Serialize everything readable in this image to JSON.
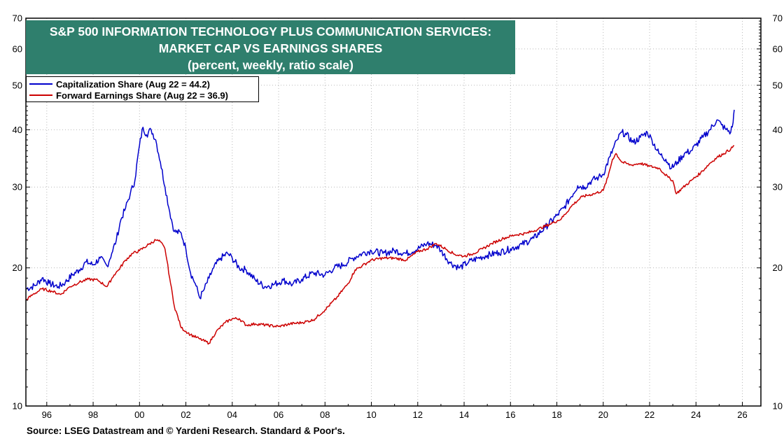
{
  "chart_data": {
    "type": "line",
    "title_lines": [
      "S&P 500 INFORMATION TECHNOLOGY PLUS COMMUNICATION SERVICES:",
      "MARKET CAP VS EARNINGS SHARES",
      "(percent, weekly, ratio scale)"
    ],
    "y_scale": "log",
    "ylim": [
      10,
      70
    ],
    "xlim": [
      1995.1,
      2026.8
    ],
    "y_ticks": [
      10,
      20,
      30,
      40,
      50,
      60,
      70
    ],
    "x_ticks": [
      {
        "value": 1996,
        "label": "96"
      },
      {
        "value": 1998,
        "label": "98"
      },
      {
        "value": 2000,
        "label": "00"
      },
      {
        "value": 2002,
        "label": "02"
      },
      {
        "value": 2004,
        "label": "04"
      },
      {
        "value": 2006,
        "label": "06"
      },
      {
        "value": 2008,
        "label": "08"
      },
      {
        "value": 2010,
        "label": "10"
      },
      {
        "value": 2012,
        "label": "12"
      },
      {
        "value": 2014,
        "label": "14"
      },
      {
        "value": 2016,
        "label": "16"
      },
      {
        "value": 2018,
        "label": "18"
      },
      {
        "value": 2020,
        "label": "20"
      },
      {
        "value": 2022,
        "label": "22"
      },
      {
        "value": 2024,
        "label": "24"
      },
      {
        "value": 2026,
        "label": "26"
      }
    ],
    "grid": true,
    "legend_position": "top-left",
    "series": [
      {
        "name": "Capitalization Share  (Aug 22 = 44.2)",
        "color": "#0000cc",
        "points": [
          [
            1995.1,
            18.0
          ],
          [
            1995.5,
            18.3
          ],
          [
            1995.8,
            19.0
          ],
          [
            1996.1,
            18.5
          ],
          [
            1996.5,
            18.2
          ],
          [
            1996.8,
            18.6
          ],
          [
            1997.1,
            19.3
          ],
          [
            1997.4,
            19.8
          ],
          [
            1997.7,
            20.6
          ],
          [
            1998.0,
            20.3
          ],
          [
            1998.3,
            21.0
          ],
          [
            1998.6,
            20.2
          ],
          [
            1998.8,
            21.5
          ],
          [
            1999.0,
            23.0
          ],
          [
            1999.2,
            25.5
          ],
          [
            1999.4,
            27.0
          ],
          [
            1999.6,
            29.0
          ],
          [
            1999.8,
            31.0
          ],
          [
            2000.0,
            37.0
          ],
          [
            2000.15,
            40.5
          ],
          [
            2000.3,
            39.0
          ],
          [
            2000.5,
            40.0
          ],
          [
            2000.7,
            38.0
          ],
          [
            2000.9,
            34.0
          ],
          [
            2001.1,
            30.0
          ],
          [
            2001.3,
            26.5
          ],
          [
            2001.5,
            24.0
          ],
          [
            2001.8,
            23.8
          ],
          [
            2002.0,
            22.0
          ],
          [
            2002.2,
            19.5
          ],
          [
            2002.4,
            18.5
          ],
          [
            2002.6,
            17.2
          ],
          [
            2002.8,
            18.0
          ],
          [
            2003.0,
            19.0
          ],
          [
            2003.2,
            20.0
          ],
          [
            2003.5,
            21.0
          ],
          [
            2003.8,
            21.5
          ],
          [
            2004.0,
            21.0
          ],
          [
            2004.3,
            20.0
          ],
          [
            2004.6,
            19.8
          ],
          [
            2005.0,
            18.8
          ],
          [
            2005.4,
            18.2
          ],
          [
            2005.8,
            18.4
          ],
          [
            2006.2,
            18.8
          ],
          [
            2006.6,
            18.4
          ],
          [
            2007.0,
            18.9
          ],
          [
            2007.5,
            19.5
          ],
          [
            2008.0,
            19.3
          ],
          [
            2008.4,
            20.0
          ],
          [
            2008.8,
            20.3
          ],
          [
            2009.2,
            21.0
          ],
          [
            2009.6,
            21.5
          ],
          [
            2010.0,
            21.8
          ],
          [
            2010.5,
            21.5
          ],
          [
            2011.0,
            21.8
          ],
          [
            2011.5,
            21.5
          ],
          [
            2012.0,
            22.0
          ],
          [
            2012.4,
            22.6
          ],
          [
            2012.8,
            22.4
          ],
          [
            2013.0,
            21.8
          ],
          [
            2013.4,
            20.5
          ],
          [
            2013.8,
            20.0
          ],
          [
            2014.2,
            20.6
          ],
          [
            2014.6,
            21.0
          ],
          [
            2015.0,
            21.3
          ],
          [
            2015.5,
            21.6
          ],
          [
            2016.0,
            22.0
          ],
          [
            2016.5,
            22.5
          ],
          [
            2017.0,
            23.2
          ],
          [
            2017.5,
            24.5
          ],
          [
            2018.0,
            26.0
          ],
          [
            2018.3,
            27.0
          ],
          [
            2018.6,
            28.5
          ],
          [
            2018.9,
            30.2
          ],
          [
            2019.2,
            30.0
          ],
          [
            2019.5,
            31.0
          ],
          [
            2019.8,
            31.5
          ],
          [
            2020.0,
            32.0
          ],
          [
            2020.3,
            35.0
          ],
          [
            2020.6,
            38.0
          ],
          [
            2020.8,
            39.5
          ],
          [
            2021.0,
            39.0
          ],
          [
            2021.3,
            37.5
          ],
          [
            2021.6,
            38.5
          ],
          [
            2021.9,
            39.5
          ],
          [
            2022.1,
            38.0
          ],
          [
            2022.4,
            35.5
          ],
          [
            2022.7,
            34.5
          ],
          [
            2022.95,
            33.0
          ],
          [
            2023.2,
            34.0
          ],
          [
            2023.5,
            35.5
          ],
          [
            2023.8,
            36.0
          ],
          [
            2024.0,
            37.0
          ],
          [
            2024.3,
            38.5
          ],
          [
            2024.6,
            40.0
          ],
          [
            2024.9,
            42.0
          ],
          [
            2025.1,
            41.0
          ],
          [
            2025.3,
            40.0
          ],
          [
            2025.5,
            39.5
          ],
          [
            2025.6,
            41.5
          ],
          [
            2025.65,
            44.2
          ]
        ]
      },
      {
        "name": "Forward Earnings Share (Aug 22 = 36.9)",
        "color": "#cc0000",
        "points": [
          [
            1995.1,
            17.0
          ],
          [
            1995.4,
            17.5
          ],
          [
            1995.8,
            18.0
          ],
          [
            1996.2,
            17.8
          ],
          [
            1996.6,
            17.5
          ],
          [
            1997.0,
            18.2
          ],
          [
            1997.4,
            18.6
          ],
          [
            1997.8,
            18.9
          ],
          [
            1998.2,
            18.8
          ],
          [
            1998.6,
            18.2
          ],
          [
            1998.9,
            19.3
          ],
          [
            1999.1,
            19.8
          ],
          [
            1999.4,
            20.8
          ],
          [
            1999.7,
            21.5
          ],
          [
            2000.0,
            21.8
          ],
          [
            2000.4,
            22.5
          ],
          [
            2000.7,
            23.0
          ],
          [
            2000.9,
            22.8
          ],
          [
            2001.1,
            22.0
          ],
          [
            2001.3,
            19.0
          ],
          [
            2001.5,
            16.5
          ],
          [
            2001.8,
            14.8
          ],
          [
            2002.2,
            14.3
          ],
          [
            2002.6,
            14.0
          ],
          [
            2003.0,
            13.7
          ],
          [
            2003.3,
            14.5
          ],
          [
            2003.7,
            15.2
          ],
          [
            2004.0,
            15.5
          ],
          [
            2004.3,
            15.5
          ],
          [
            2004.6,
            15.0
          ],
          [
            2005.0,
            15.1
          ],
          [
            2005.5,
            15.0
          ],
          [
            2006.0,
            14.9
          ],
          [
            2006.5,
            15.1
          ],
          [
            2007.0,
            15.2
          ],
          [
            2007.5,
            15.4
          ],
          [
            2008.0,
            16.2
          ],
          [
            2008.5,
            17.2
          ],
          [
            2009.0,
            18.5
          ],
          [
            2009.3,
            19.8
          ],
          [
            2009.6,
            20.2
          ],
          [
            2010.0,
            20.8
          ],
          [
            2010.5,
            21.0
          ],
          [
            2011.0,
            21.0
          ],
          [
            2011.5,
            20.8
          ],
          [
            2012.0,
            21.7
          ],
          [
            2012.4,
            22.0
          ],
          [
            2012.8,
            22.6
          ],
          [
            2013.2,
            22.0
          ],
          [
            2013.6,
            21.4
          ],
          [
            2014.0,
            21.2
          ],
          [
            2014.4,
            21.5
          ],
          [
            2014.8,
            22.0
          ],
          [
            2015.2,
            22.6
          ],
          [
            2015.7,
            23.2
          ],
          [
            2016.2,
            23.6
          ],
          [
            2016.7,
            23.8
          ],
          [
            2017.2,
            24.3
          ],
          [
            2017.7,
            24.9
          ],
          [
            2018.2,
            25.6
          ],
          [
            2018.7,
            27.5
          ],
          [
            2019.1,
            28.6
          ],
          [
            2019.6,
            29.0
          ],
          [
            2020.0,
            29.5
          ],
          [
            2020.2,
            31.5
          ],
          [
            2020.4,
            34.5
          ],
          [
            2020.55,
            35.5
          ],
          [
            2020.8,
            34.0
          ],
          [
            2021.2,
            33.5
          ],
          [
            2021.6,
            33.8
          ],
          [
            2022.0,
            33.3
          ],
          [
            2022.4,
            33.0
          ],
          [
            2022.8,
            31.5
          ],
          [
            2023.0,
            31.0
          ],
          [
            2023.15,
            29.0
          ],
          [
            2023.4,
            29.8
          ],
          [
            2023.8,
            31.0
          ],
          [
            2024.2,
            32.2
          ],
          [
            2024.6,
            33.8
          ],
          [
            2024.9,
            34.8
          ],
          [
            2025.2,
            35.5
          ],
          [
            2025.5,
            36.3
          ],
          [
            2025.65,
            36.9
          ]
        ]
      }
    ],
    "source": "Source: LSEG Datastream and © Yardeni Research. Standard & Poor's."
  }
}
